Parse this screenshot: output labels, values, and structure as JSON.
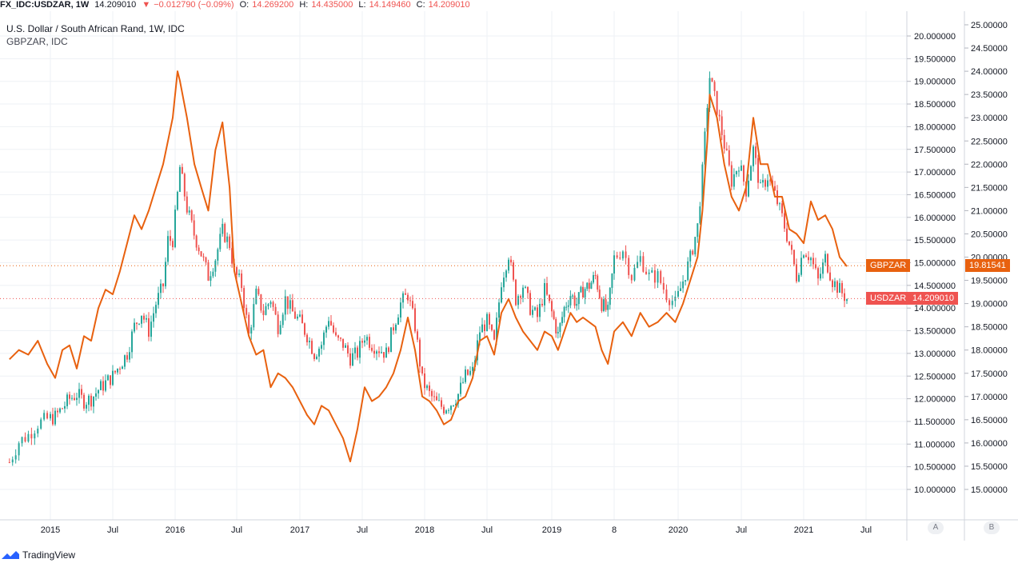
{
  "header": {
    "symbol": "FX_IDC:USDZAR, 1W",
    "last": "14.209010",
    "change_arrow": "▼",
    "change": "−0.012790 (−0.09%)",
    "open_label": "O:",
    "open": "14.269200",
    "high_label": "H:",
    "high": "14.435000",
    "low_label": "L:",
    "low": "14.149460",
    "close_label": "C:",
    "close": "14.209010"
  },
  "legend": {
    "main": "U.S. Dollar / South African Rand, 1W, IDC",
    "compare": "GBPZAR, IDC"
  },
  "brand": "TradingView",
  "axis_buttons": {
    "a": "A",
    "b": "B"
  },
  "colors": {
    "up": "#26a69a",
    "down": "#ef5350",
    "compare_line": "#e8610f",
    "usdzar_tag": "#ef5350",
    "gbpzar_tag": "#e8610f",
    "grid": "#eef1f5",
    "axis_text": "#131722"
  },
  "chart_data": {
    "type": "line",
    "x_axis_labels": [
      "2015",
      "Jul",
      "2016",
      "Jul",
      "2017",
      "Jul",
      "2018",
      "Jul",
      "2019",
      "8",
      "2020",
      "Jul",
      "2021",
      "Jul"
    ],
    "y_axis_a": {
      "ticks": [
        "20.000000",
        "19.500000",
        "19.000000",
        "18.500000",
        "18.000000",
        "17.500000",
        "17.000000",
        "16.500000",
        "16.000000",
        "15.500000",
        "15.000000",
        "14.500000",
        "14.000000",
        "13.500000",
        "13.000000",
        "12.500000",
        "12.000000",
        "11.500000",
        "11.000000",
        "10.500000",
        "10.000000"
      ],
      "ylim": [
        10.0,
        20.0
      ]
    },
    "y_axis_b": {
      "ticks": [
        "25.00000",
        "24.50000",
        "24.00000",
        "23.50000",
        "23.00000",
        "22.50000",
        "22.00000",
        "21.50000",
        "21.00000",
        "20.50000",
        "20.00000",
        "19.50000",
        "19.00000",
        "18.50000",
        "18.00000",
        "17.50000",
        "17.00000",
        "16.50000",
        "16.00000",
        "15.50000",
        "15.00000"
      ],
      "ylim": [
        15.0,
        25.0
      ]
    },
    "series": [
      {
        "name": "USDZAR",
        "axis": "A",
        "style": "candles",
        "last_label": "14.209010",
        "points": [
          [
            "2014-10-06",
            10.6
          ],
          [
            "2014-10-27",
            11.05
          ],
          [
            "2014-11-17",
            11.2
          ],
          [
            "2014-12-08",
            11.45
          ],
          [
            "2014-12-29",
            11.55
          ],
          [
            "2015-01-19",
            11.6
          ],
          [
            "2015-02-09",
            11.8
          ],
          [
            "2015-03-02",
            12.0
          ],
          [
            "2015-03-23",
            12.1
          ],
          [
            "2015-04-13",
            11.95
          ],
          [
            "2015-05-04",
            12.0
          ],
          [
            "2015-05-25",
            12.2
          ],
          [
            "2015-06-15",
            12.35
          ],
          [
            "2015-07-06",
            12.5
          ],
          [
            "2015-07-27",
            12.75
          ],
          [
            "2015-08-17",
            13.0
          ],
          [
            "2015-09-07",
            13.6
          ],
          [
            "2015-09-28",
            13.9
          ],
          [
            "2015-10-19",
            13.5
          ],
          [
            "2015-11-09",
            14.1
          ],
          [
            "2015-11-30",
            14.5
          ],
          [
            "2015-12-14",
            15.5
          ],
          [
            "2015-12-28",
            15.5
          ],
          [
            "2016-01-11",
            16.5
          ],
          [
            "2016-01-18",
            17.1
          ],
          [
            "2016-02-08",
            16.2
          ],
          [
            "2016-03-01",
            15.6
          ],
          [
            "2016-03-21",
            15.2
          ],
          [
            "2016-04-11",
            14.7
          ],
          [
            "2016-05-02",
            15.1
          ],
          [
            "2016-05-23",
            15.7
          ],
          [
            "2016-06-13",
            15.4
          ],
          [
            "2016-06-27",
            14.8
          ],
          [
            "2016-07-18",
            14.5
          ],
          [
            "2016-08-08",
            13.4
          ],
          [
            "2016-08-29",
            14.3
          ],
          [
            "2016-09-19",
            13.9
          ],
          [
            "2016-10-10",
            14.2
          ],
          [
            "2016-10-31",
            13.6
          ],
          [
            "2016-11-21",
            14.2
          ],
          [
            "2016-12-12",
            13.9
          ],
          [
            "2017-01-02",
            13.7
          ],
          [
            "2017-01-23",
            13.4
          ],
          [
            "2017-02-13",
            13.0
          ],
          [
            "2017-03-06",
            13.2
          ],
          [
            "2017-03-27",
            13.8
          ],
          [
            "2017-04-17",
            13.3
          ],
          [
            "2017-05-08",
            13.2
          ],
          [
            "2017-05-29",
            12.9
          ],
          [
            "2017-06-19",
            13.0
          ],
          [
            "2017-07-10",
            13.4
          ],
          [
            "2017-07-31",
            13.2
          ],
          [
            "2017-08-21",
            13.1
          ],
          [
            "2017-09-11",
            13.0
          ],
          [
            "2017-10-02",
            13.6
          ],
          [
            "2017-10-23",
            14.1
          ],
          [
            "2017-11-13",
            14.3
          ],
          [
            "2017-12-04",
            13.6
          ],
          [
            "2017-12-25",
            12.4
          ],
          [
            "2018-01-15",
            12.1
          ],
          [
            "2018-02-05",
            11.9
          ],
          [
            "2018-02-26",
            11.8
          ],
          [
            "2018-03-19",
            11.9
          ],
          [
            "2018-04-09",
            12.1
          ],
          [
            "2018-04-30",
            12.5
          ],
          [
            "2018-05-21",
            12.6
          ],
          [
            "2018-06-11",
            13.5
          ],
          [
            "2018-07-02",
            13.7
          ],
          [
            "2018-07-23",
            13.2
          ],
          [
            "2018-08-13",
            14.6
          ],
          [
            "2018-09-03",
            15.2
          ],
          [
            "2018-09-24",
            14.2
          ],
          [
            "2018-10-15",
            14.5
          ],
          [
            "2018-11-05",
            14.0
          ],
          [
            "2018-11-26",
            13.8
          ],
          [
            "2018-12-17",
            14.4
          ],
          [
            "2019-01-07",
            13.9
          ],
          [
            "2019-01-28",
            13.4
          ],
          [
            "2019-02-18",
            14.0
          ],
          [
            "2019-03-11",
            14.3
          ],
          [
            "2019-04-01",
            14.1
          ],
          [
            "2019-04-22",
            14.4
          ],
          [
            "2019-05-13",
            14.5
          ],
          [
            "2019-06-03",
            14.7
          ],
          [
            "2019-06-24",
            14.1
          ],
          [
            "2019-07-15",
            13.9
          ],
          [
            "2019-08-05",
            15.1
          ],
          [
            "2019-08-26",
            15.3
          ],
          [
            "2019-09-16",
            14.7
          ],
          [
            "2019-10-07",
            15.1
          ],
          [
            "2019-10-28",
            14.7
          ],
          [
            "2019-11-18",
            14.7
          ],
          [
            "2019-12-09",
            14.3
          ],
          [
            "2019-12-30",
            14.1
          ],
          [
            "2020-01-20",
            14.6
          ],
          [
            "2020-02-10",
            15.1
          ],
          [
            "2020-03-02",
            15.8
          ],
          [
            "2020-03-16",
            17.0
          ],
          [
            "2020-03-30",
            18.5
          ],
          [
            "2020-04-06",
            19.1
          ],
          [
            "2020-04-27",
            18.4
          ],
          [
            "2020-05-18",
            17.6
          ],
          [
            "2020-06-08",
            16.8
          ],
          [
            "2020-06-29",
            17.2
          ],
          [
            "2020-07-20",
            16.6
          ],
          [
            "2020-08-10",
            17.5
          ],
          [
            "2020-08-31",
            16.6
          ],
          [
            "2020-09-21",
            16.9
          ],
          [
            "2020-10-12",
            16.5
          ],
          [
            "2020-11-02",
            16.0
          ],
          [
            "2020-11-23",
            15.4
          ],
          [
            "2020-12-14",
            14.7
          ],
          [
            "2021-01-04",
            15.3
          ],
          [
            "2021-01-25",
            15.1
          ],
          [
            "2021-02-15",
            14.6
          ],
          [
            "2021-03-08",
            15.1
          ],
          [
            "2021-03-29",
            14.6
          ],
          [
            "2021-04-19",
            14.4
          ],
          [
            "2021-05-10",
            14.2
          ]
        ]
      },
      {
        "name": "GBPZAR",
        "axis": "B",
        "style": "line",
        "last_label": "19.81541",
        "points": [
          [
            "2014-10-06",
            17.8
          ],
          [
            "2014-10-27",
            18.0
          ],
          [
            "2014-11-17",
            17.9
          ],
          [
            "2014-12-08",
            18.2
          ],
          [
            "2014-12-29",
            17.7
          ],
          [
            "2015-01-19",
            17.4
          ],
          [
            "2015-02-09",
            18.0
          ],
          [
            "2015-03-02",
            18.1
          ],
          [
            "2015-03-23",
            17.6
          ],
          [
            "2015-04-13",
            18.3
          ],
          [
            "2015-05-04",
            18.2
          ],
          [
            "2015-05-25",
            18.9
          ],
          [
            "2015-06-15",
            19.3
          ],
          [
            "2015-07-06",
            19.2
          ],
          [
            "2015-07-27",
            19.7
          ],
          [
            "2015-08-17",
            20.3
          ],
          [
            "2015-09-07",
            20.9
          ],
          [
            "2015-09-28",
            20.6
          ],
          [
            "2015-10-19",
            21.0
          ],
          [
            "2015-11-09",
            21.5
          ],
          [
            "2015-11-30",
            22.0
          ],
          [
            "2015-12-14",
            22.5
          ],
          [
            "2015-12-28",
            23.0
          ],
          [
            "2016-01-11",
            24.0
          ],
          [
            "2016-01-18",
            23.8
          ],
          [
            "2016-02-08",
            23.0
          ],
          [
            "2016-03-01",
            22.0
          ],
          [
            "2016-03-21",
            21.5
          ],
          [
            "2016-04-11",
            21.0
          ],
          [
            "2016-05-02",
            22.3
          ],
          [
            "2016-05-23",
            22.9
          ],
          [
            "2016-06-13",
            21.5
          ],
          [
            "2016-06-27",
            19.7
          ],
          [
            "2016-07-18",
            19.0
          ],
          [
            "2016-08-08",
            18.3
          ],
          [
            "2016-08-29",
            17.9
          ],
          [
            "2016-09-19",
            18.0
          ],
          [
            "2016-10-10",
            17.2
          ],
          [
            "2016-10-31",
            17.5
          ],
          [
            "2016-11-21",
            17.4
          ],
          [
            "2016-12-12",
            17.2
          ],
          [
            "2017-01-02",
            16.9
          ],
          [
            "2017-01-23",
            16.6
          ],
          [
            "2017-02-13",
            16.4
          ],
          [
            "2017-03-06",
            16.8
          ],
          [
            "2017-03-27",
            16.7
          ],
          [
            "2017-04-17",
            16.4
          ],
          [
            "2017-05-08",
            16.1
          ],
          [
            "2017-05-29",
            15.6
          ],
          [
            "2017-06-19",
            16.3
          ],
          [
            "2017-07-10",
            17.2
          ],
          [
            "2017-07-31",
            16.9
          ],
          [
            "2017-08-21",
            17.0
          ],
          [
            "2017-09-11",
            17.2
          ],
          [
            "2017-10-02",
            17.5
          ],
          [
            "2017-10-23",
            18.0
          ],
          [
            "2017-11-13",
            18.7
          ],
          [
            "2017-12-04",
            18.0
          ],
          [
            "2017-12-25",
            17.0
          ],
          [
            "2018-01-15",
            16.9
          ],
          [
            "2018-02-05",
            16.7
          ],
          [
            "2018-02-26",
            16.4
          ],
          [
            "2018-03-19",
            16.5
          ],
          [
            "2018-04-09",
            16.9
          ],
          [
            "2018-04-30",
            17.0
          ],
          [
            "2018-05-21",
            17.4
          ],
          [
            "2018-06-11",
            18.2
          ],
          [
            "2018-07-02",
            18.3
          ],
          [
            "2018-07-23",
            17.9
          ],
          [
            "2018-08-13",
            18.8
          ],
          [
            "2018-09-03",
            19.1
          ],
          [
            "2018-09-24",
            18.7
          ],
          [
            "2018-10-15",
            18.4
          ],
          [
            "2018-11-05",
            18.2
          ],
          [
            "2018-11-26",
            18.0
          ],
          [
            "2018-12-17",
            18.4
          ],
          [
            "2019-01-07",
            18.3
          ],
          [
            "2019-01-28",
            18.0
          ],
          [
            "2019-02-18",
            18.4
          ],
          [
            "2019-03-11",
            18.8
          ],
          [
            "2019-04-01",
            18.6
          ],
          [
            "2019-04-22",
            18.7
          ],
          [
            "2019-05-13",
            18.6
          ],
          [
            "2019-06-03",
            18.5
          ],
          [
            "2019-06-24",
            18.0
          ],
          [
            "2019-07-15",
            17.7
          ],
          [
            "2019-08-05",
            18.4
          ],
          [
            "2019-08-26",
            18.6
          ],
          [
            "2019-09-16",
            18.3
          ],
          [
            "2019-10-07",
            18.8
          ],
          [
            "2019-10-28",
            18.5
          ],
          [
            "2019-11-18",
            18.6
          ],
          [
            "2019-12-09",
            18.8
          ],
          [
            "2019-12-30",
            18.6
          ],
          [
            "2020-01-20",
            19.0
          ],
          [
            "2020-02-10",
            19.5
          ],
          [
            "2020-03-02",
            20.0
          ],
          [
            "2020-03-16",
            21.0
          ],
          [
            "2020-03-30",
            22.5
          ],
          [
            "2020-04-06",
            23.5
          ],
          [
            "2020-04-27",
            23.0
          ],
          [
            "2020-05-18",
            22.0
          ],
          [
            "2020-06-08",
            21.3
          ],
          [
            "2020-06-29",
            21.0
          ],
          [
            "2020-07-20",
            21.5
          ],
          [
            "2020-08-10",
            23.0
          ],
          [
            "2020-08-31",
            22.0
          ],
          [
            "2020-09-21",
            22.0
          ],
          [
            "2020-10-12",
            21.3
          ],
          [
            "2020-11-02",
            21.3
          ],
          [
            "2020-11-23",
            20.6
          ],
          [
            "2020-12-14",
            20.5
          ],
          [
            "2021-01-04",
            20.3
          ],
          [
            "2021-01-25",
            21.2
          ],
          [
            "2021-02-15",
            20.8
          ],
          [
            "2021-03-08",
            20.9
          ],
          [
            "2021-03-29",
            20.6
          ],
          [
            "2021-04-19",
            20.0
          ],
          [
            "2021-05-10",
            19.8
          ]
        ]
      }
    ],
    "grid": true
  }
}
